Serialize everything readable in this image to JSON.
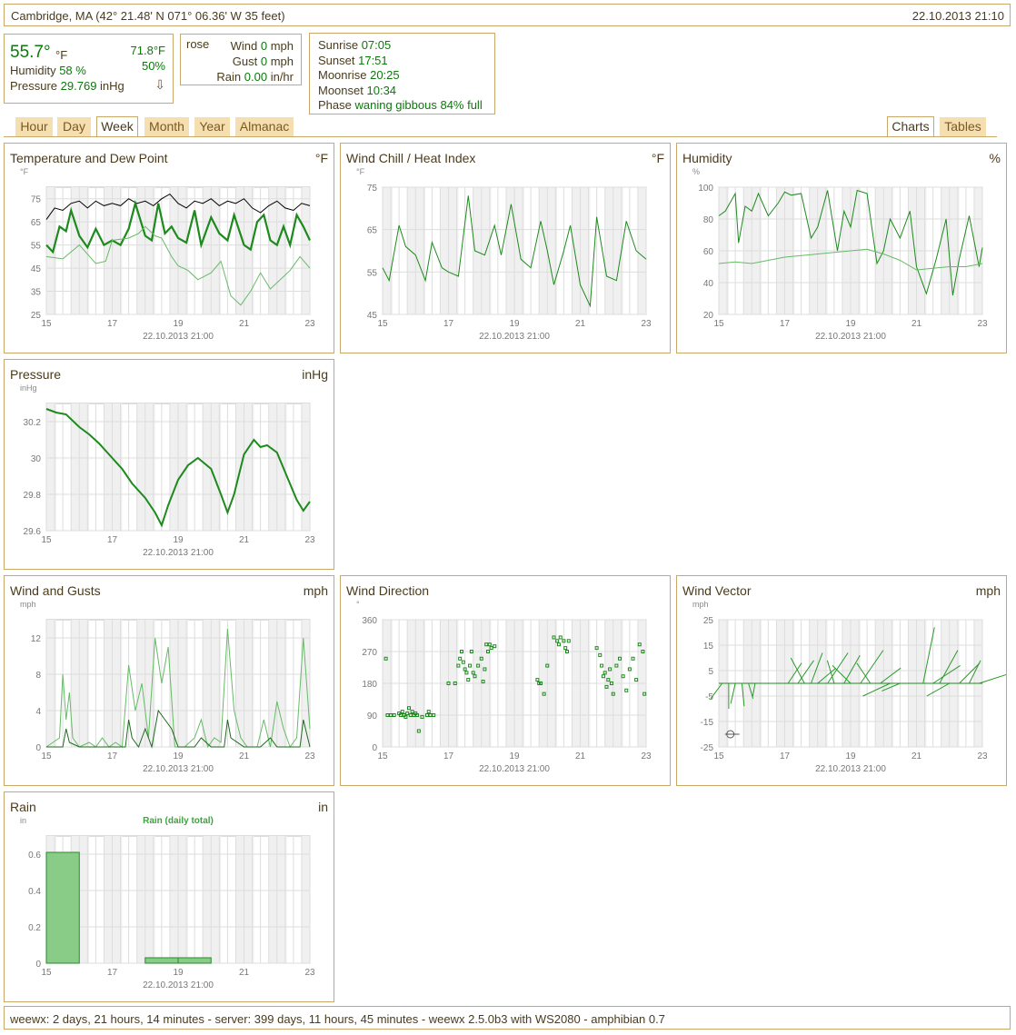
{
  "header": {
    "location": "Cambridge, MA (42° 21.48' N 071° 06.36' W 35 feet)",
    "datetime": "22.10.2013 21:10"
  },
  "current": {
    "temperature": "55.7°",
    "temp_unit": "°F",
    "inside_temp": "71.8°F",
    "humidity_label": "Humidity",
    "humidity_value": "58 %",
    "inside_humidity": "50%",
    "pressure_label": "Pressure",
    "pressure_value": "29.769",
    "pressure_unit": "inHg",
    "trend_arrow": "⇩"
  },
  "wind": {
    "rose_label": "rose",
    "wind_label": "Wind",
    "wind_value": "0",
    "wind_unit": "mph",
    "gust_label": "Gust",
    "gust_value": "0",
    "gust_unit": "mph",
    "rain_label": "Rain",
    "rain_value": "0.00",
    "rain_unit": "in/hr"
  },
  "astro": {
    "sunrise_label": "Sunrise",
    "sunrise": "07:05",
    "sunset_label": "Sunset",
    "sunset": "17:51",
    "moonrise_label": "Moonrise",
    "moonrise": "20:25",
    "moonset_label": "Moonset",
    "moonset": "10:34",
    "phase_label": "Phase",
    "phase": "waning gibbous 84% full"
  },
  "tabs": {
    "hour": "Hour",
    "day": "Day",
    "week": "Week",
    "month": "Month",
    "year": "Year",
    "almanac": "Almanac",
    "charts": "Charts",
    "tables": "Tables"
  },
  "colors": {
    "border": "#c9a86a",
    "green": "#0a7a0a",
    "tab_bg": "#f5deb0",
    "grid": "#dddddd"
  },
  "footer": "weewx: 2 days, 21 hours, 14 minutes - server: 399 days, 11 hours, 45 minutes - weewx 2.5.0b3 with WS2080 - amphibian 0.7",
  "chart_data": [
    {
      "id": "temp",
      "type": "line",
      "title": "Temperature and Dew Point",
      "unit_label": "°F",
      "axis_unit": "°F",
      "xticks": [
        "15",
        "17",
        "19",
        "21",
        "23"
      ],
      "ylim": [
        25,
        80
      ],
      "yticks": [
        25,
        35,
        45,
        55,
        65,
        75
      ],
      "date_label": "22.10.2013 21:00",
      "xrange": [
        15,
        23
      ],
      "series": [
        {
          "color": "#000000",
          "width": 1,
          "x": [
            15,
            15.25,
            15.5,
            15.75,
            16,
            16.25,
            16.5,
            16.75,
            17,
            17.25,
            17.5,
            17.75,
            18,
            18.25,
            18.5,
            18.75,
            19,
            19.25,
            19.5,
            19.75,
            20,
            20.25,
            20.5,
            20.75,
            21,
            21.25,
            21.5,
            21.75,
            22,
            22.25,
            22.5,
            22.75,
            23
          ],
          "y": [
            66,
            71,
            70,
            73,
            74,
            71,
            74,
            72,
            73,
            72,
            75,
            73,
            74,
            72,
            75,
            77,
            73,
            71,
            74,
            73,
            75,
            72,
            74,
            73,
            75,
            71,
            69,
            72,
            74,
            71,
            70,
            73,
            72
          ]
        },
        {
          "color": "#1e8a1e",
          "width": 2.2,
          "x": [
            15,
            15.2,
            15.4,
            15.6,
            15.75,
            16,
            16.25,
            16.5,
            16.75,
            17,
            17.25,
            17.5,
            17.7,
            18,
            18.2,
            18.4,
            18.6,
            18.8,
            19,
            19.25,
            19.5,
            19.7,
            20,
            20.25,
            20.5,
            20.7,
            21,
            21.2,
            21.4,
            21.6,
            21.8,
            22,
            22.2,
            22.4,
            22.6,
            22.8,
            23
          ],
          "y": [
            55,
            52,
            63,
            61,
            70,
            59,
            54,
            62,
            55,
            57,
            55,
            62,
            73,
            59,
            57,
            73,
            60,
            63,
            58,
            56,
            70,
            55,
            67,
            60,
            57,
            68,
            55,
            53,
            65,
            68,
            57,
            55,
            63,
            55,
            68,
            63,
            57
          ]
        },
        {
          "color": "#66bb66",
          "width": 1,
          "x": [
            15,
            15.5,
            16,
            16.5,
            16.8,
            17,
            17.5,
            17.8,
            18,
            18.3,
            18.5,
            18.8,
            19,
            19.3,
            19.6,
            20,
            20.3,
            20.6,
            20.9,
            21.2,
            21.5,
            21.8,
            22.1,
            22.4,
            22.7,
            23
          ],
          "y": [
            50,
            49,
            55,
            47,
            48,
            57,
            58,
            60,
            63,
            59,
            58,
            50,
            46,
            44,
            40,
            43,
            48,
            33,
            29,
            35,
            43,
            36,
            40,
            44,
            50,
            45
          ]
        }
      ]
    },
    {
      "id": "chill",
      "type": "line",
      "title": "Wind Chill / Heat Index",
      "unit_label": "°F",
      "axis_unit": "°F",
      "xticks": [
        "15",
        "17",
        "19",
        "21",
        "23"
      ],
      "ylim": [
        45,
        75
      ],
      "yticks": [
        45,
        55,
        65,
        75
      ],
      "date_label": "22.10.2013 21:00",
      "xrange": [
        15,
        23
      ],
      "series": [
        {
          "color": "#1e8a1e",
          "width": 1,
          "x": [
            15,
            15.2,
            15.5,
            15.7,
            16,
            16.3,
            16.5,
            16.8,
            17,
            17.3,
            17.6,
            17.8,
            18.1,
            18.4,
            18.6,
            18.9,
            19.2,
            19.5,
            19.8,
            20.0,
            20.2,
            20.5,
            20.7,
            21.0,
            21.3,
            21.5,
            21.8,
            22.1,
            22.4,
            22.7,
            23
          ],
          "y": [
            56,
            53,
            66,
            61,
            59,
            53,
            62,
            56,
            55,
            54,
            73,
            60,
            59,
            66,
            59,
            71,
            58,
            56,
            67,
            60,
            52,
            60,
            66,
            52,
            47,
            68,
            54,
            53,
            67,
            60,
            58
          ]
        }
      ]
    },
    {
      "id": "hum",
      "type": "line",
      "title": "Humidity",
      "unit_label": "%",
      "axis_unit": "%",
      "xticks": [
        "15",
        "17",
        "19",
        "21",
        "23"
      ],
      "ylim": [
        20,
        100
      ],
      "yticks": [
        20,
        40,
        60,
        80,
        100
      ],
      "date_label": "22.10.2013 21:00",
      "xrange": [
        15,
        23
      ],
      "series": [
        {
          "color": "#1e8a1e",
          "width": 1,
          "x": [
            15,
            15.2,
            15.5,
            15.6,
            15.8,
            16,
            16.2,
            16.5,
            16.8,
            17,
            17.2,
            17.5,
            17.8,
            18,
            18.3,
            18.6,
            18.8,
            19,
            19.2,
            19.5,
            19.8,
            20,
            20.2,
            20.5,
            20.8,
            21,
            21.3,
            21.6,
            21.9,
            22.1,
            22.3,
            22.6,
            22.9,
            23
          ],
          "y": [
            82,
            85,
            96,
            65,
            88,
            85,
            96,
            82,
            90,
            97,
            95,
            96,
            68,
            75,
            98,
            60,
            85,
            75,
            98,
            96,
            52,
            60,
            80,
            68,
            85,
            50,
            33,
            55,
            80,
            32,
            55,
            82,
            50,
            62
          ]
        },
        {
          "color": "#66bb66",
          "width": 1,
          "x": [
            15,
            15.5,
            16,
            16.5,
            17,
            17.5,
            18,
            18.5,
            19,
            19.5,
            20,
            20.5,
            21,
            21.5,
            22,
            22.5,
            23
          ],
          "y": [
            52,
            53,
            52,
            54,
            56,
            57,
            58,
            59,
            60,
            61,
            58,
            54,
            48,
            49,
            50,
            50,
            52
          ]
        }
      ]
    },
    {
      "id": "pres",
      "type": "line",
      "title": "Pressure",
      "unit_label": "inHg",
      "axis_unit": "inHg",
      "xticks": [
        "15",
        "17",
        "19",
        "21",
        "23"
      ],
      "ylim": [
        29.6,
        30.3
      ],
      "yticks": [
        29.6,
        29.8,
        30.0,
        30.2
      ],
      "date_label": "22.10.2013 21:00",
      "xrange": [
        15,
        23
      ],
      "series": [
        {
          "color": "#1e8a1e",
          "width": 2,
          "x": [
            15,
            15.3,
            15.6,
            16,
            16.3,
            16.6,
            17,
            17.3,
            17.6,
            18,
            18.3,
            18.5,
            18.7,
            19,
            19.3,
            19.6,
            20,
            20.3,
            20.5,
            20.7,
            21,
            21.3,
            21.5,
            21.7,
            22,
            22.3,
            22.6,
            22.8,
            23
          ],
          "y": [
            30.27,
            30.25,
            30.24,
            30.17,
            30.13,
            30.08,
            30.0,
            29.94,
            29.86,
            29.78,
            29.7,
            29.63,
            29.74,
            29.88,
            29.96,
            30.0,
            29.94,
            29.8,
            29.7,
            29.8,
            30.02,
            30.1,
            30.06,
            30.07,
            30.03,
            29.9,
            29.77,
            29.71,
            29.76
          ]
        }
      ]
    },
    {
      "id": "wind",
      "type": "line",
      "title": "Wind and Gusts",
      "unit_label": "mph",
      "axis_unit": "mph",
      "xticks": [
        "15",
        "17",
        "19",
        "21",
        "23"
      ],
      "ylim": [
        0,
        14
      ],
      "yticks": [
        0,
        4,
        8,
        12
      ],
      "date_label": "22.10.2013 21:00",
      "xrange": [
        15,
        23
      ],
      "series": [
        {
          "color": "#66bb66",
          "width": 1,
          "x": [
            15,
            15.4,
            15.5,
            15.6,
            15.7,
            15.8,
            16,
            16.3,
            16.5,
            16.7,
            16.9,
            17.1,
            17.3,
            17.5,
            17.7,
            17.9,
            18.1,
            18.3,
            18.5,
            18.7,
            18.9,
            19.2,
            19.5,
            19.7,
            19.9,
            20.1,
            20.3,
            20.5,
            20.7,
            20.9,
            21.1,
            21.4,
            21.6,
            21.8,
            22,
            22.2,
            22.4,
            22.6,
            22.8,
            23
          ],
          "y": [
            0,
            1,
            8,
            3,
            6,
            1,
            0,
            0.5,
            0,
            1,
            0,
            0.5,
            0,
            9,
            4,
            7,
            1,
            12,
            7,
            11,
            0,
            0,
            1,
            3,
            0,
            1,
            0.5,
            13,
            4,
            1,
            0,
            0,
            3,
            0,
            5,
            2,
            0,
            1,
            12,
            2
          ]
        },
        {
          "color": "#1e6a1e",
          "width": 1,
          "x": [
            15,
            15.5,
            15.6,
            15.7,
            16,
            16.5,
            17,
            17.4,
            17.5,
            17.6,
            17.8,
            18,
            18.2,
            18.4,
            18.6,
            18.8,
            19,
            19.5,
            19.7,
            20,
            20.4,
            20.5,
            20.6,
            21,
            21.5,
            21.8,
            22,
            22.4,
            22.7,
            22.8,
            23
          ],
          "y": [
            0,
            0,
            2,
            0.5,
            0,
            0,
            0,
            0,
            3,
            1,
            0,
            2,
            0,
            4,
            3,
            2,
            0,
            0,
            1,
            0,
            0,
            3,
            1,
            0,
            0,
            1,
            0,
            0,
            0,
            3,
            0
          ]
        }
      ]
    },
    {
      "id": "dir",
      "type": "scatter",
      "title": "Wind Direction",
      "unit_label": "",
      "axis_unit": "°",
      "xticks": [
        "15",
        "17",
        "19",
        "21",
        "23"
      ],
      "ylim": [
        0,
        360
      ],
      "yticks": [
        0,
        90,
        180,
        270,
        360
      ],
      "date_label": "22.10.2013 21:00",
      "xrange": [
        15,
        23
      ],
      "series": [
        {
          "color": "#1e8a1e",
          "x": [
            15.1,
            15.15,
            15.25,
            15.35,
            15.5,
            15.55,
            15.6,
            15.65,
            15.7,
            15.75,
            15.8,
            15.85,
            15.9,
            15.95,
            16.0,
            16.05,
            16.1,
            16.2,
            16.35,
            16.4,
            16.45,
            16.55,
            17.0,
            17.2,
            17.3,
            17.35,
            17.4,
            17.45,
            17.5,
            17.55,
            17.6,
            17.65,
            17.7,
            17.75,
            17.8,
            17.9,
            18.0,
            18.05,
            18.1,
            18.15,
            18.2,
            18.25,
            18.3,
            18.4,
            19.7,
            19.75,
            19.8,
            19.9,
            20.0,
            20.2,
            20.3,
            20.35,
            20.4,
            20.5,
            20.55,
            20.6,
            20.65,
            21.5,
            21.6,
            21.65,
            21.7,
            21.75,
            21.8,
            21.85,
            21.9,
            21.95,
            22.0,
            22.1,
            22.2,
            22.3,
            22.4,
            22.5,
            22.6,
            22.7,
            22.8,
            22.9,
            22.95
          ],
          "y": [
            250,
            90,
            90,
            90,
            95,
            90,
            100,
            90,
            85,
            95,
            110,
            90,
            100,
            90,
            95,
            90,
            45,
            85,
            90,
            100,
            90,
            90,
            180,
            180,
            230,
            250,
            270,
            240,
            220,
            210,
            190,
            230,
            270,
            210,
            200,
            230,
            250,
            185,
            220,
            290,
            270,
            290,
            280,
            285,
            190,
            180,
            180,
            150,
            230,
            310,
            300,
            290,
            310,
            300,
            280,
            270,
            300,
            280,
            260,
            230,
            200,
            210,
            170,
            190,
            220,
            180,
            150,
            230,
            250,
            200,
            160,
            220,
            250,
            190,
            290,
            270,
            150
          ]
        }
      ]
    },
    {
      "id": "vec",
      "type": "line",
      "title": "Wind Vector",
      "unit_label": "mph",
      "axis_unit": "mph",
      "xticks": [
        "15",
        "17",
        "19",
        "21",
        "23"
      ],
      "ylim": [
        -25,
        25
      ],
      "yticks": [
        -25,
        -15,
        -5,
        5,
        15,
        25
      ],
      "date_label": "22.10.2013 21:00",
      "xrange": [
        15,
        23
      ],
      "series": []
    },
    {
      "id": "rain",
      "type": "bar",
      "title": "Rain",
      "unit_label": "in",
      "axis_unit": "in",
      "legend": "Rain (daily total)",
      "xticks": [
        "15",
        "17",
        "19",
        "21",
        "23"
      ],
      "ylim": [
        0,
        0.7
      ],
      "yticks": [
        0.0,
        0.2,
        0.4,
        0.6
      ],
      "date_label": "22.10.2013 21:00",
      "xrange": [
        15,
        23
      ],
      "bars": [
        {
          "x0": 15,
          "x1": 16,
          "value": 0.61
        },
        {
          "x0": 16,
          "x1": 17,
          "value": 0.0
        },
        {
          "x0": 17,
          "x1": 18,
          "value": 0.0
        },
        {
          "x0": 18,
          "x1": 19,
          "value": 0.03
        },
        {
          "x0": 19,
          "x1": 20,
          "value": 0.03
        },
        {
          "x0": 20,
          "x1": 21,
          "value": 0.0
        },
        {
          "x0": 21,
          "x1": 22,
          "value": 0.0
        },
        {
          "x0": 22,
          "x1": 23,
          "value": 0.0
        }
      ]
    }
  ]
}
